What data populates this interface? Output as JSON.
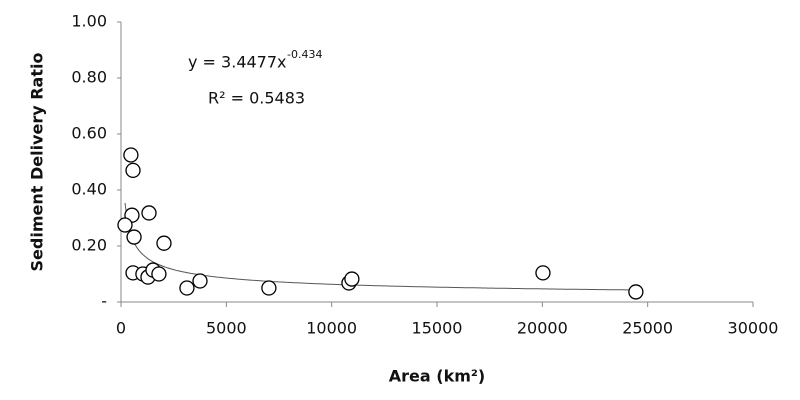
{
  "chart_data": {
    "type": "scatter",
    "x_label": "Area (km²)",
    "y_label": "Sediment Delivery Ratio",
    "x": [
      470,
      570,
      520,
      1330,
      190,
      620,
      2040,
      570,
      1040,
      1280,
      1520,
      1800,
      3130,
      3750,
      7020,
      10820,
      10960,
      20030,
      24440
    ],
    "values": [
      0.525,
      0.47,
      0.31,
      0.318,
      0.275,
      0.232,
      0.21,
      0.104,
      0.1,
      0.089,
      0.114,
      0.1,
      0.05,
      0.075,
      0.05,
      0.068,
      0.082,
      0.104,
      0.036
    ],
    "marker_color": "#000000",
    "xlim": [
      0,
      30000
    ],
    "xticks": [
      0,
      5000,
      10000,
      15000,
      20000,
      25000,
      30000
    ],
    "ylim": [
      0,
      1
    ],
    "yticks": [
      {
        "value": 0,
        "label": "-"
      },
      {
        "value": 0.2,
        "label": "0.20"
      },
      {
        "value": 0.4,
        "label": "0.40"
      },
      {
        "value": 0.6,
        "label": "0.60"
      },
      {
        "value": 0.8,
        "label": "0.80"
      },
      {
        "value": 1,
        "label": "1.00"
      }
    ],
    "grid": false,
    "trendline": {
      "label": "y = 3.4477x",
      "exponent_label": "-0.434",
      "r2_label": "R² = 0.5483",
      "coefficient": 3.4477,
      "exponent": -0.434,
      "color": "#555555"
    }
  }
}
